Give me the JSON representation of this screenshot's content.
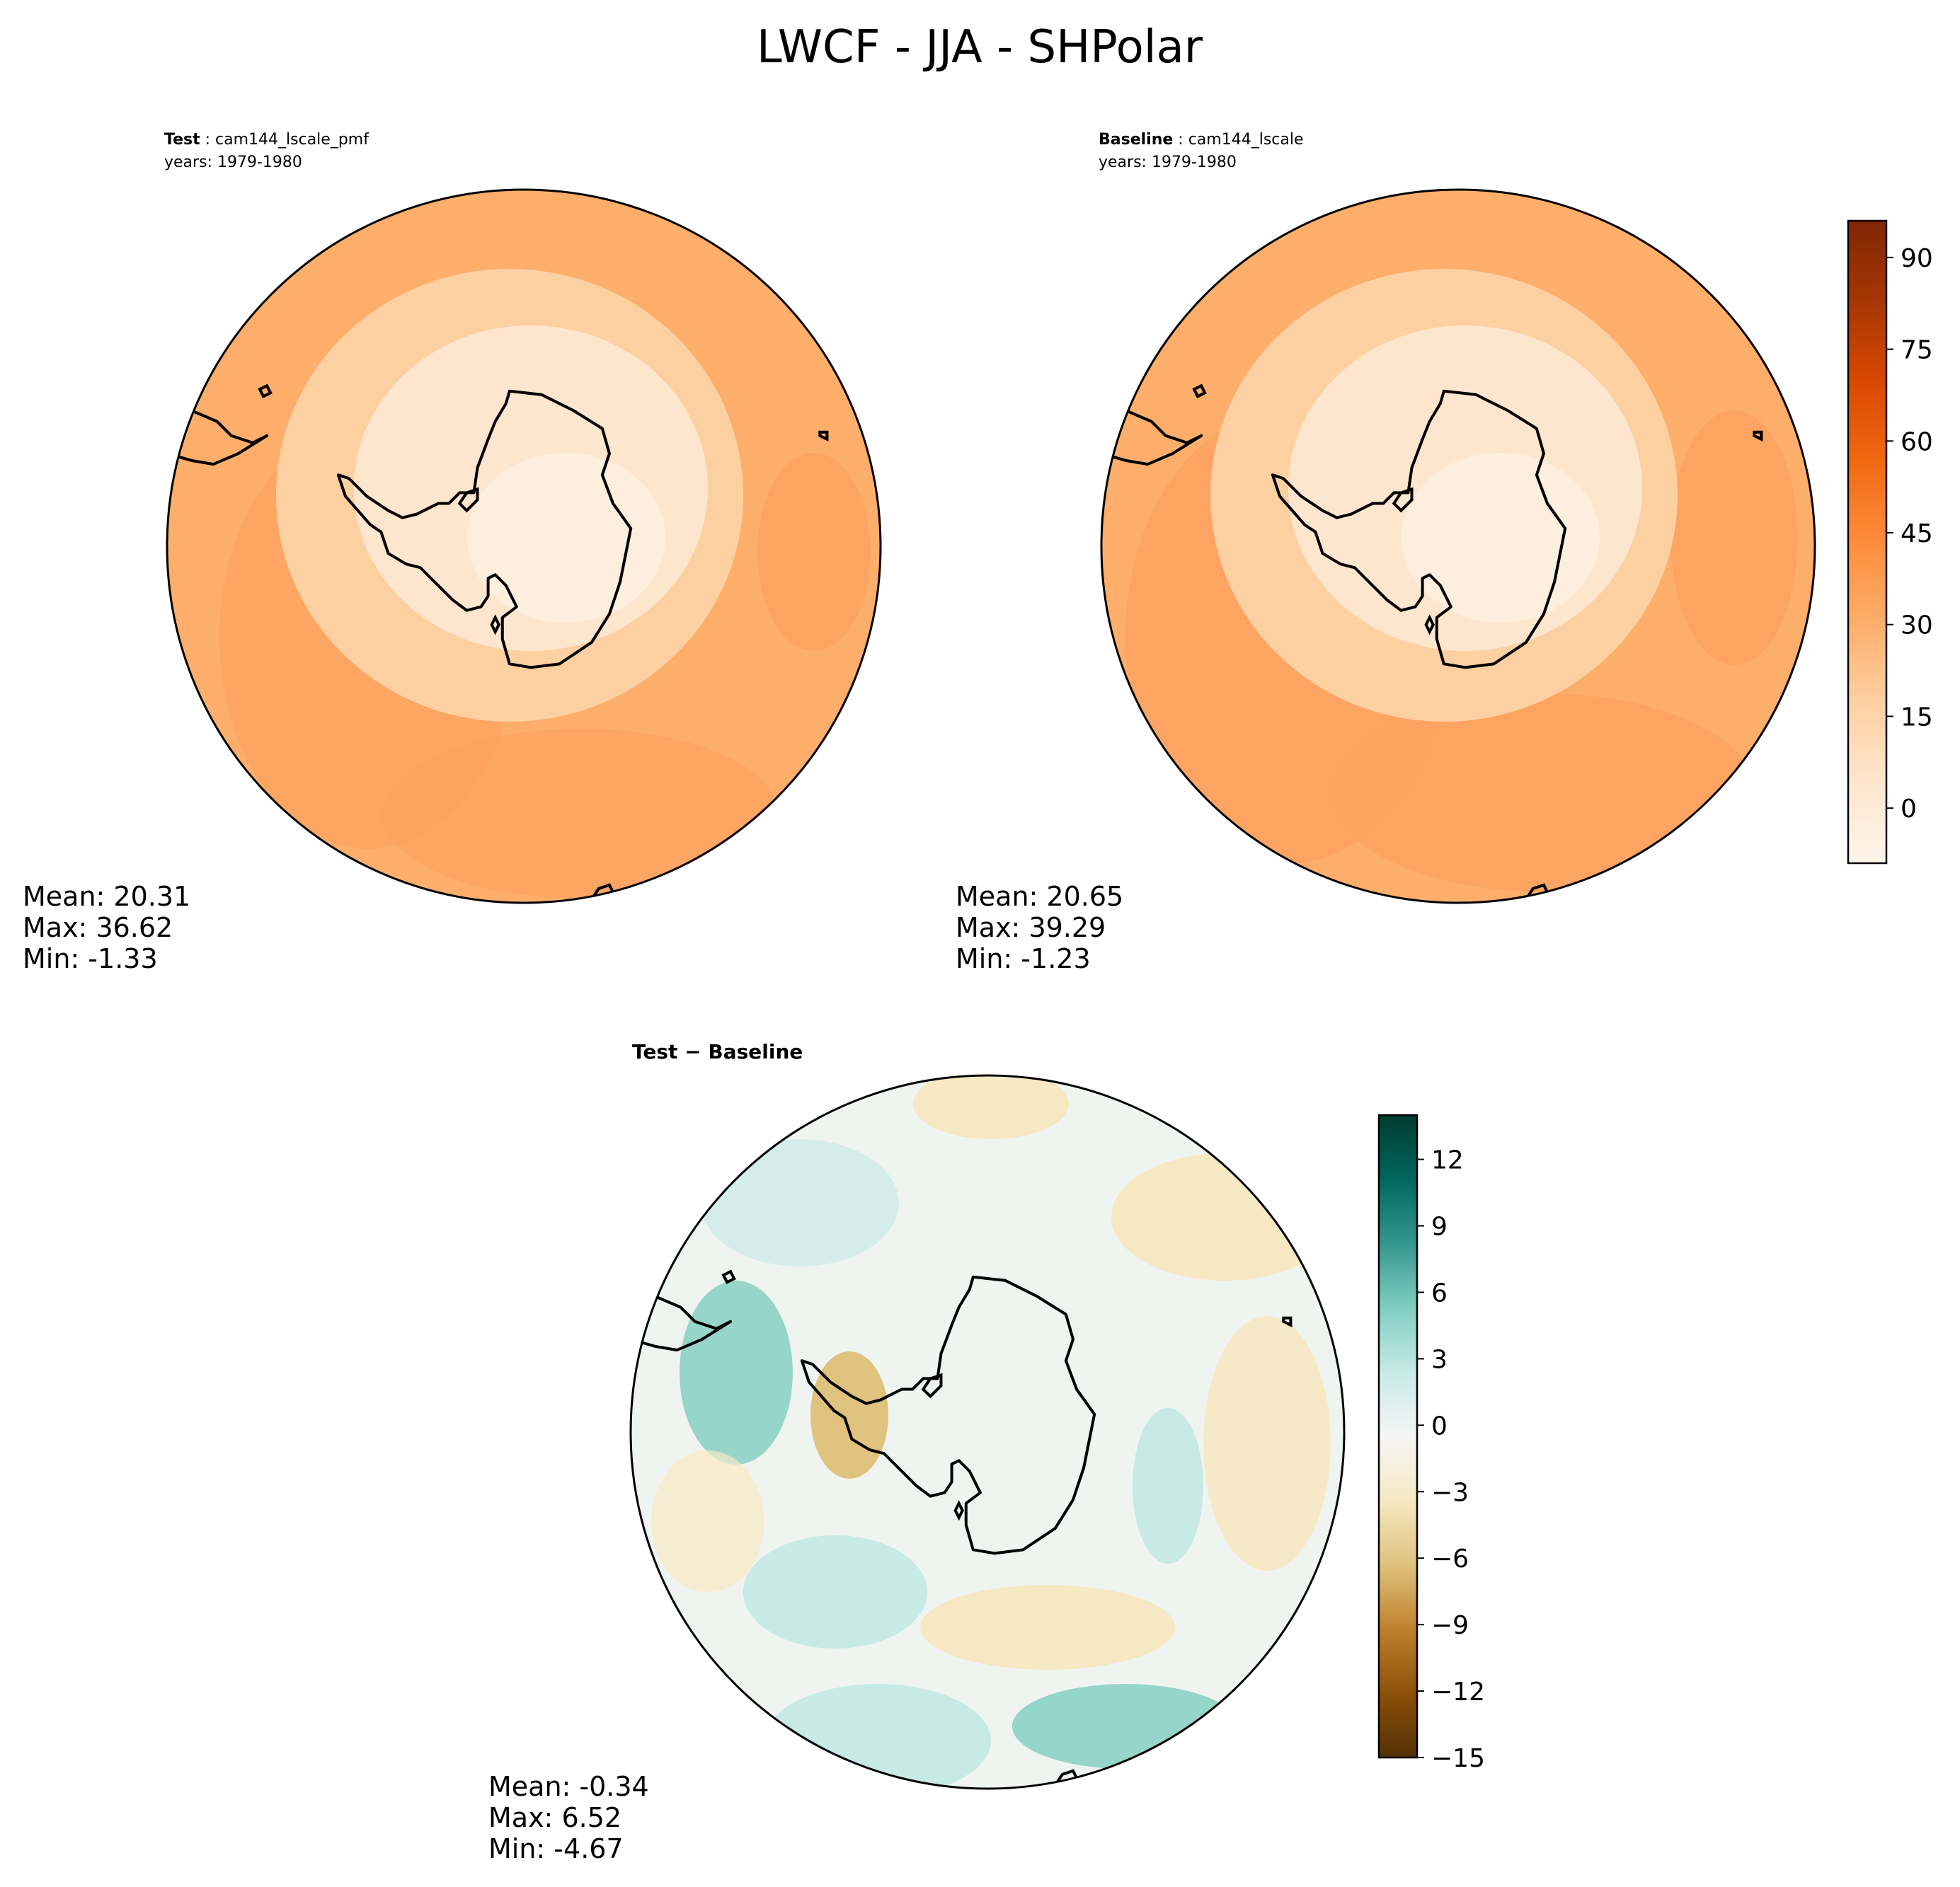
{
  "figure": {
    "title": "LWCF - JJA - SHPolar"
  },
  "panels": {
    "test": {
      "label": "Test",
      "case": "cam144_lscale_pmf",
      "years": "years: 1979-1980",
      "stats": {
        "mean": "Mean: 20.31",
        "max": "Max: 36.62",
        "min": "Min: -1.33"
      }
    },
    "baseline": {
      "label": "Baseline",
      "case": "cam144_lscale",
      "years": "years: 1979-1980",
      "stats": {
        "mean": "Mean: 20.65",
        "max": "Max: 39.29",
        "min": "Min: -1.23"
      }
    },
    "diff": {
      "label": "Test − Baseline",
      "stats": {
        "mean": "Mean: -0.34",
        "max": "Max:  6.52",
        "min": "Min: -4.67"
      }
    }
  },
  "colorbars": {
    "field": {
      "colormap": "Oranges",
      "range": [
        -9,
        96
      ],
      "ticks": [
        "90",
        "75",
        "60",
        "45",
        "30",
        "15",
        "0"
      ],
      "tick_values": [
        90,
        75,
        60,
        45,
        30,
        15,
        0
      ],
      "colors": [
        "#7f2704",
        "#a63603",
        "#d94801",
        "#f16913",
        "#fd8d3c",
        "#fdae6b",
        "#fdd0a2",
        "#fee6ce",
        "#fff5eb"
      ]
    },
    "diff": {
      "colormap": "BrBG",
      "range": [
        -15,
        14
      ],
      "ticks": [
        "12",
        "9",
        "6",
        "3",
        "0",
        "−3",
        "−6",
        "−9",
        "−12",
        "−15"
      ],
      "tick_values": [
        12,
        9,
        6,
        3,
        0,
        -3,
        -6,
        -9,
        -12,
        -15
      ],
      "colors": [
        "#003c30",
        "#01665e",
        "#35978f",
        "#80cdc1",
        "#c7eae5",
        "#f5f5f5",
        "#f6e8c3",
        "#dfc27d",
        "#bf812d",
        "#8c510a",
        "#543005"
      ]
    }
  },
  "map_colors": {
    "ocean_field": "#fdae6b",
    "ocean_field_dark": "#fca160",
    "ring_field": "#fdd0a2",
    "continent_field": "#fee6ce",
    "continent_center": "#fdeede",
    "diff_base": "#f0f4f1",
    "diff_pos": "#c7eae5",
    "diff_pos_strong": "#80cdc1",
    "diff_neg": "#f6e8c3",
    "diff_neg_strong": "#dfc27d"
  }
}
